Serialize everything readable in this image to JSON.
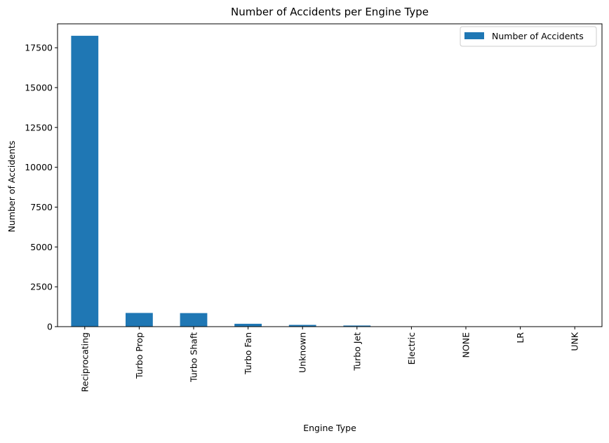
{
  "chart_data": {
    "type": "bar",
    "title": "Number of Accidents per Engine Type",
    "xlabel": "Engine Type",
    "ylabel": "Number of Accidents",
    "categories": [
      "Reciprocating",
      "Turbo Prop",
      "Turbo Shaft",
      "Turbo Fan",
      "Unknown",
      "Turbo Jet",
      "Electric",
      "NONE",
      "LR",
      "UNK"
    ],
    "series": [
      {
        "name": "Number of Accidents",
        "values": [
          18250,
          860,
          850,
          180,
          110,
          70,
          15,
          2,
          2,
          1
        ],
        "color": "#1f77b4"
      }
    ],
    "ylim": [
      0,
      19000
    ],
    "yticks": [
      0,
      2500,
      5000,
      7500,
      10000,
      12500,
      15000,
      17500
    ],
    "grid": false,
    "legend_position": "top-right"
  }
}
